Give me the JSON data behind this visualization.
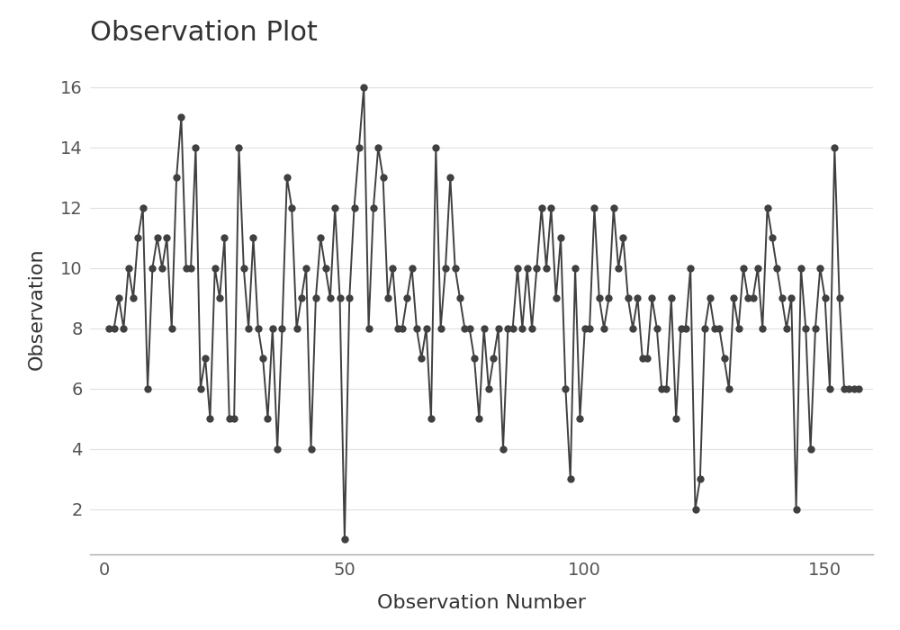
{
  "title": "Observation Plot",
  "xlabel": "Observation Number",
  "ylabel": "Observation",
  "xlim": [
    -3,
    160
  ],
  "ylim": [
    0.5,
    16.8
  ],
  "yticks": [
    2,
    4,
    6,
    8,
    10,
    12,
    14,
    16
  ],
  "xticks": [
    0,
    50,
    100,
    150
  ],
  "background_color": "#ffffff",
  "line_color": "#404040",
  "marker_color": "#404040",
  "grid_color": "#e0e0e0",
  "title_fontsize": 22,
  "label_fontsize": 16,
  "tick_fontsize": 14,
  "line_width": 1.4,
  "marker_size": 6,
  "values": [
    8,
    8,
    9,
    8,
    10,
    9,
    11,
    12,
    6,
    10,
    11,
    10,
    11,
    8,
    13,
    15,
    10,
    10,
    14,
    6,
    7,
    5,
    10,
    9,
    11,
    5,
    5,
    14,
    10,
    8,
    11,
    8,
    7,
    5,
    8,
    4,
    8,
    13,
    12,
    8,
    9,
    10,
    4,
    9,
    11,
    10,
    9,
    12,
    9,
    1,
    9,
    12,
    14,
    16,
    8,
    12,
    14,
    13,
    9,
    10,
    8,
    8,
    9,
    10,
    8,
    7,
    8,
    5,
    14,
    8,
    10,
    13,
    10,
    9,
    8,
    8,
    7,
    5,
    8,
    6,
    7,
    8,
    4,
    8,
    8,
    10,
    8,
    10,
    8,
    10,
    12,
    10,
    12,
    9,
    11,
    6,
    3,
    10,
    5,
    8,
    8,
    12,
    9,
    8,
    9,
    12,
    10,
    11,
    9,
    8,
    9,
    7,
    7,
    9,
    8,
    6,
    6,
    9,
    5,
    8,
    8,
    10,
    2,
    3,
    8,
    9,
    8,
    8,
    7,
    6,
    9,
    8,
    10,
    9,
    9,
    10,
    8,
    12,
    11,
    10,
    9,
    8,
    9,
    2,
    10,
    8,
    4,
    8,
    10,
    9,
    6,
    14,
    9,
    6,
    6,
    6,
    6
  ]
}
